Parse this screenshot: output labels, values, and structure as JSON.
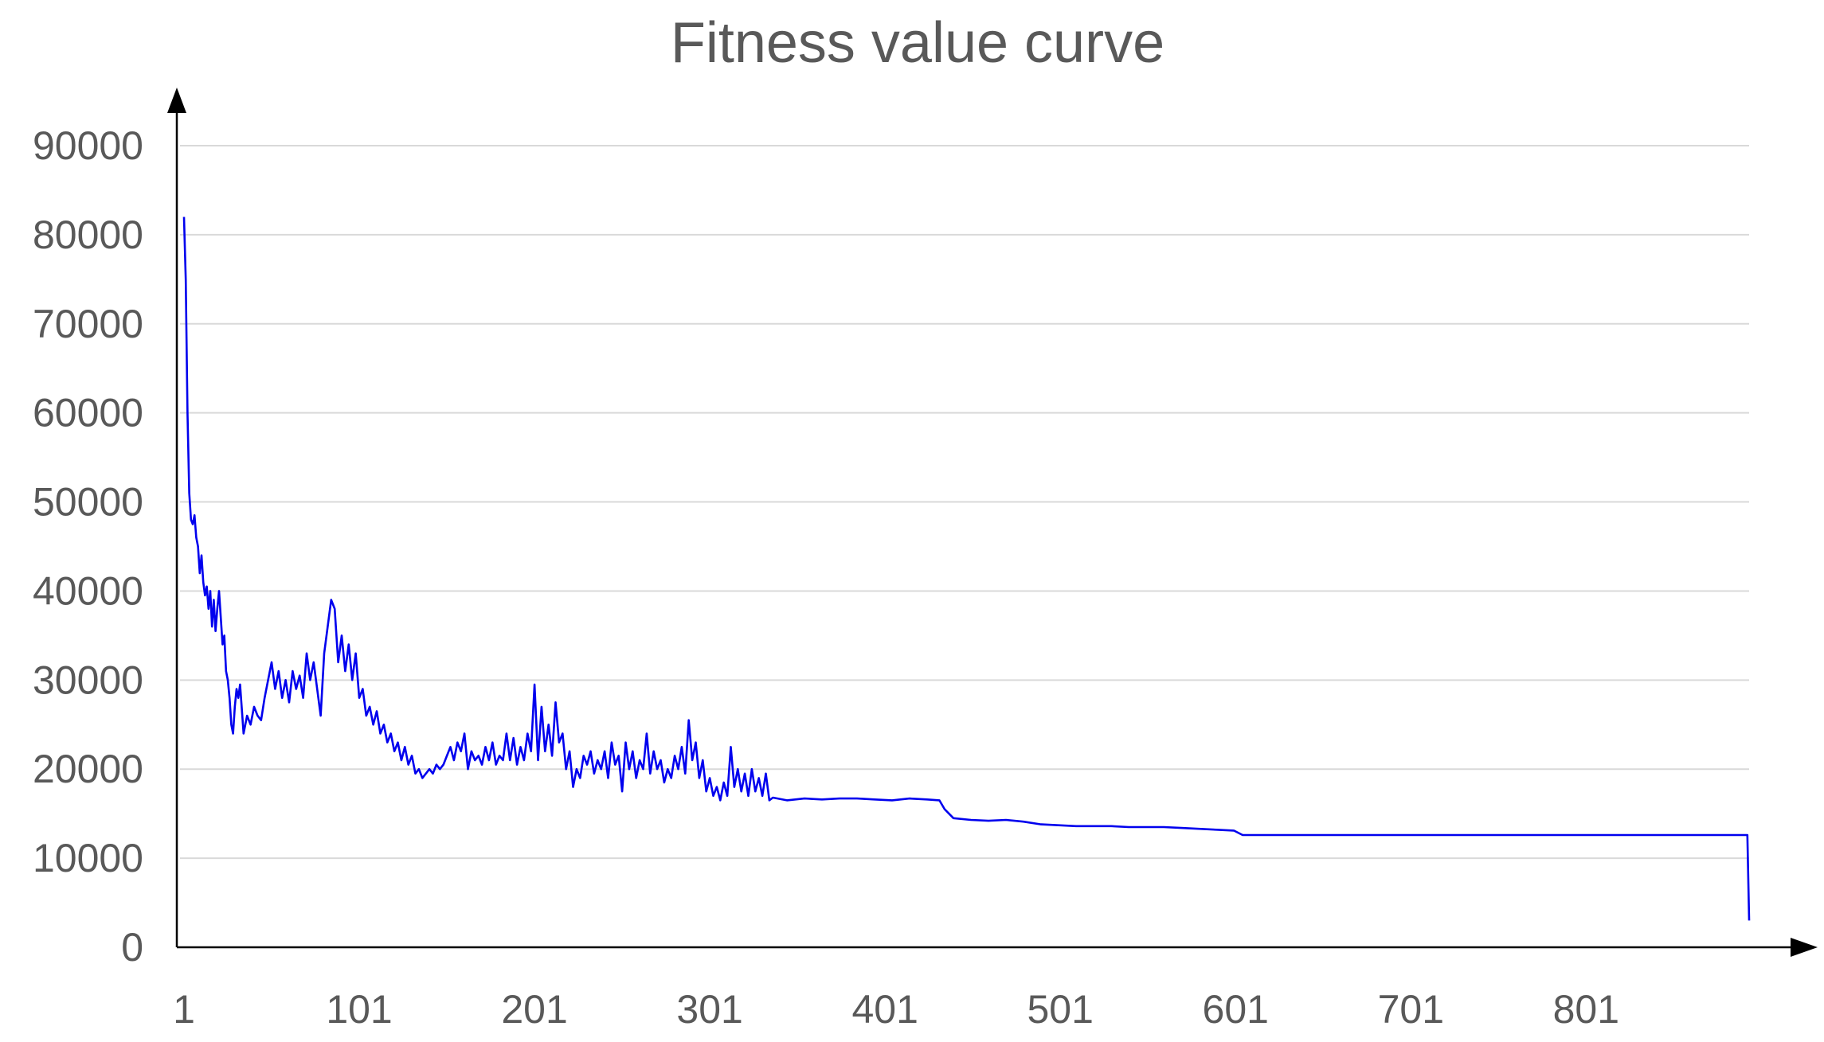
{
  "chart_data": {
    "type": "line",
    "title": "Fitness value curve",
    "xlabel": "",
    "ylabel": "",
    "x_ticks": [
      "1",
      "101",
      "201",
      "301",
      "401",
      "501",
      "601",
      "701",
      "801"
    ],
    "y_ticks": [
      "0",
      "10000",
      "20000",
      "30000",
      "40000",
      "50000",
      "60000",
      "70000",
      "80000",
      "90000"
    ],
    "ylim": [
      0,
      90000
    ],
    "xlim": [
      1,
      894
    ],
    "grid": true,
    "legend": "none",
    "colors": {
      "line": "#0000ee",
      "grid": "#d9d9d9",
      "axis": "#000000",
      "text": "#595959"
    },
    "series": [
      {
        "values": [
          [
            1,
            82000
          ],
          [
            2,
            75000
          ],
          [
            3,
            60000
          ],
          [
            4,
            51000
          ],
          [
            5,
            48000
          ],
          [
            6,
            47500
          ],
          [
            7,
            48500
          ],
          [
            8,
            46000
          ],
          [
            9,
            45000
          ],
          [
            10,
            42000
          ],
          [
            11,
            44000
          ],
          [
            12,
            41000
          ],
          [
            13,
            39500
          ],
          [
            14,
            40500
          ],
          [
            15,
            38000
          ],
          [
            16,
            40000
          ],
          [
            17,
            36000
          ],
          [
            18,
            39000
          ],
          [
            19,
            35500
          ],
          [
            20,
            38000
          ],
          [
            21,
            40000
          ],
          [
            22,
            37000
          ],
          [
            23,
            34000
          ],
          [
            24,
            35000
          ],
          [
            25,
            31000
          ],
          [
            26,
            30000
          ],
          [
            27,
            28000
          ],
          [
            28,
            25000
          ],
          [
            29,
            24000
          ],
          [
            30,
            27000
          ],
          [
            31,
            29000
          ],
          [
            32,
            28000
          ],
          [
            33,
            29500
          ],
          [
            35,
            24000
          ],
          [
            37,
            26000
          ],
          [
            39,
            25000
          ],
          [
            41,
            27000
          ],
          [
            43,
            26000
          ],
          [
            45,
            25500
          ],
          [
            47,
            28000
          ],
          [
            49,
            30000
          ],
          [
            51,
            32000
          ],
          [
            53,
            29000
          ],
          [
            55,
            31000
          ],
          [
            57,
            28000
          ],
          [
            59,
            30000
          ],
          [
            61,
            27500
          ],
          [
            63,
            31000
          ],
          [
            65,
            29000
          ],
          [
            67,
            30500
          ],
          [
            69,
            28000
          ],
          [
            71,
            33000
          ],
          [
            73,
            30000
          ],
          [
            75,
            32000
          ],
          [
            77,
            29000
          ],
          [
            79,
            26000
          ],
          [
            81,
            33000
          ],
          [
            83,
            36000
          ],
          [
            85,
            39000
          ],
          [
            87,
            38000
          ],
          [
            89,
            32000
          ],
          [
            91,
            35000
          ],
          [
            93,
            31000
          ],
          [
            95,
            34000
          ],
          [
            97,
            30000
          ],
          [
            99,
            33000
          ],
          [
            101,
            28000
          ],
          [
            103,
            29000
          ],
          [
            105,
            26000
          ],
          [
            107,
            27000
          ],
          [
            109,
            25000
          ],
          [
            111,
            26500
          ],
          [
            113,
            24000
          ],
          [
            115,
            25000
          ],
          [
            117,
            23000
          ],
          [
            119,
            24000
          ],
          [
            121,
            22000
          ],
          [
            123,
            23000
          ],
          [
            125,
            21000
          ],
          [
            127,
            22500
          ],
          [
            129,
            20500
          ],
          [
            131,
            21500
          ],
          [
            133,
            19500
          ],
          [
            135,
            20000
          ],
          [
            137,
            19000
          ],
          [
            139,
            19500
          ],
          [
            141,
            20000
          ],
          [
            143,
            19500
          ],
          [
            145,
            20500
          ],
          [
            147,
            20000
          ],
          [
            149,
            20500
          ],
          [
            151,
            21500
          ],
          [
            153,
            22500
          ],
          [
            155,
            21000
          ],
          [
            157,
            23000
          ],
          [
            159,
            22000
          ],
          [
            161,
            24000
          ],
          [
            163,
            20000
          ],
          [
            165,
            22000
          ],
          [
            167,
            21000
          ],
          [
            169,
            21500
          ],
          [
            171,
            20500
          ],
          [
            173,
            22500
          ],
          [
            175,
            21000
          ],
          [
            177,
            23000
          ],
          [
            179,
            20500
          ],
          [
            181,
            21500
          ],
          [
            183,
            21000
          ],
          [
            185,
            24000
          ],
          [
            187,
            21000
          ],
          [
            189,
            23500
          ],
          [
            191,
            20500
          ],
          [
            193,
            22500
          ],
          [
            195,
            21000
          ],
          [
            197,
            24000
          ],
          [
            199,
            22000
          ],
          [
            201,
            29500
          ],
          [
            203,
            21000
          ],
          [
            205,
            27000
          ],
          [
            207,
            22000
          ],
          [
            209,
            25000
          ],
          [
            211,
            21500
          ],
          [
            213,
            27500
          ],
          [
            215,
            23000
          ],
          [
            217,
            24000
          ],
          [
            219,
            20000
          ],
          [
            221,
            22000
          ],
          [
            223,
            18000
          ],
          [
            225,
            20000
          ],
          [
            227,
            19000
          ],
          [
            229,
            21500
          ],
          [
            231,
            20500
          ],
          [
            233,
            22000
          ],
          [
            235,
            19500
          ],
          [
            237,
            21000
          ],
          [
            239,
            20000
          ],
          [
            241,
            22000
          ],
          [
            243,
            19000
          ],
          [
            245,
            23000
          ],
          [
            247,
            20500
          ],
          [
            249,
            21500
          ],
          [
            251,
            17500
          ],
          [
            253,
            23000
          ],
          [
            255,
            20000
          ],
          [
            257,
            22000
          ],
          [
            259,
            19000
          ],
          [
            261,
            21000
          ],
          [
            263,
            20000
          ],
          [
            265,
            24000
          ],
          [
            267,
            19500
          ],
          [
            269,
            22000
          ],
          [
            271,
            20000
          ],
          [
            273,
            21000
          ],
          [
            275,
            18500
          ],
          [
            277,
            20000
          ],
          [
            279,
            19000
          ],
          [
            281,
            21500
          ],
          [
            283,
            20000
          ],
          [
            285,
            22500
          ],
          [
            287,
            19500
          ],
          [
            289,
            25500
          ],
          [
            291,
            21000
          ],
          [
            293,
            23000
          ],
          [
            295,
            19000
          ],
          [
            297,
            21000
          ],
          [
            299,
            17500
          ],
          [
            301,
            19000
          ],
          [
            303,
            17000
          ],
          [
            305,
            18000
          ],
          [
            307,
            16500
          ],
          [
            309,
            18500
          ],
          [
            311,
            17000
          ],
          [
            313,
            22500
          ],
          [
            315,
            18000
          ],
          [
            317,
            20000
          ],
          [
            319,
            17500
          ],
          [
            321,
            19500
          ],
          [
            323,
            17000
          ],
          [
            325,
            20000
          ],
          [
            327,
            17500
          ],
          [
            329,
            19000
          ],
          [
            331,
            17000
          ],
          [
            333,
            19500
          ],
          [
            335,
            16500
          ],
          [
            337,
            16800
          ],
          [
            345,
            16500
          ],
          [
            355,
            16700
          ],
          [
            365,
            16600
          ],
          [
            375,
            16700
          ],
          [
            385,
            16700
          ],
          [
            395,
            16600
          ],
          [
            405,
            16500
          ],
          [
            415,
            16700
          ],
          [
            425,
            16600
          ],
          [
            432,
            16500
          ],
          [
            435,
            15500
          ],
          [
            440,
            14500
          ],
          [
            450,
            14300
          ],
          [
            460,
            14200
          ],
          [
            470,
            14300
          ],
          [
            480,
            14100
          ],
          [
            490,
            13800
          ],
          [
            500,
            13700
          ],
          [
            510,
            13600
          ],
          [
            520,
            13600
          ],
          [
            530,
            13600
          ],
          [
            540,
            13500
          ],
          [
            550,
            13500
          ],
          [
            560,
            13500
          ],
          [
            570,
            13400
          ],
          [
            580,
            13300
          ],
          [
            590,
            13200
          ],
          [
            600,
            13100
          ],
          [
            605,
            12600
          ],
          [
            650,
            12600
          ],
          [
            700,
            12600
          ],
          [
            750,
            12600
          ],
          [
            800,
            12600
          ],
          [
            850,
            12600
          ],
          [
            893,
            12600
          ],
          [
            894,
            3000
          ]
        ]
      }
    ]
  }
}
